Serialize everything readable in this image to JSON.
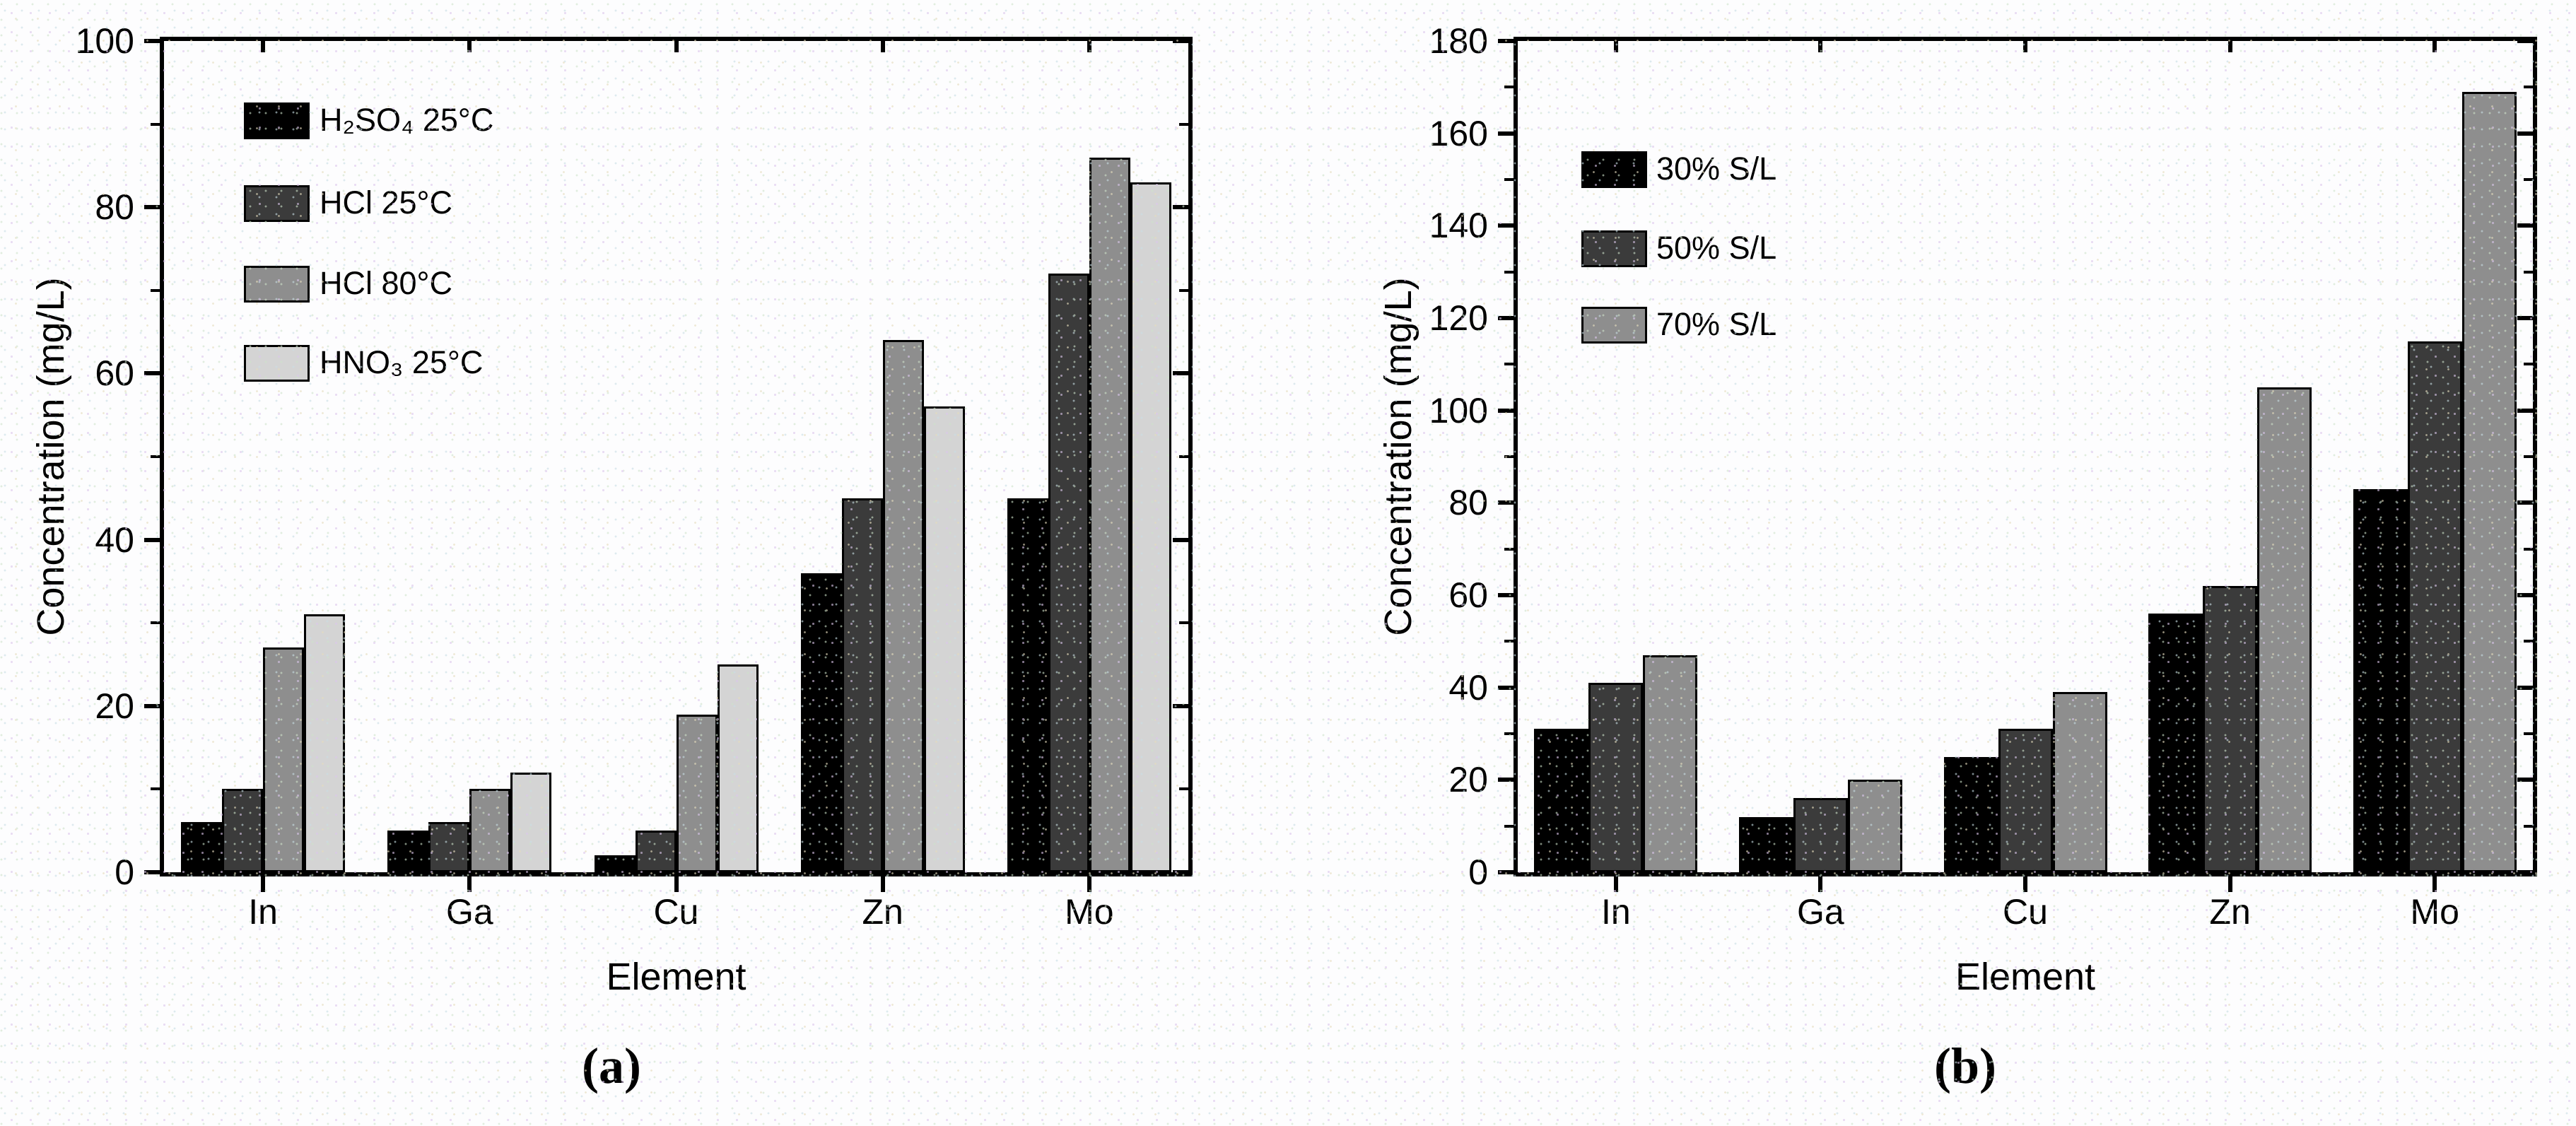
{
  "figure": {
    "description": "Two-panel grayscale bar figure comparing element concentrations",
    "text_color": "#000000",
    "axis_color": "#000000"
  },
  "chart_data": [
    {
      "type": "bar",
      "caption": "(a)",
      "title": "",
      "xlabel": "Element",
      "ylabel": "Concentration (mg/L)",
      "ylim": [
        0,
        100
      ],
      "ytick_interval": 20,
      "yminor_interval": 10,
      "grid": false,
      "legend_position": "upper-left-inside",
      "categories": [
        "In",
        "Ga",
        "Cu",
        "Zn",
        "Mo"
      ],
      "series": [
        {
          "name": "H₂SO₄ 25°C",
          "color": "#000000",
          "values": [
            6,
            5,
            2,
            36,
            45
          ]
        },
        {
          "name": "HCl 25°C",
          "color": "#3b3b3b",
          "values": [
            10,
            6,
            5,
            45,
            72
          ]
        },
        {
          "name": "HCl 80°C",
          "color": "#8e8e8e",
          "values": [
            27,
            10,
            19,
            64,
            86
          ]
        },
        {
          "name": "HNO₃ 25°C",
          "color": "#d4d4d4",
          "values": [
            31,
            12,
            25,
            56,
            83
          ]
        }
      ]
    },
    {
      "type": "bar",
      "caption": "(b)",
      "title": "",
      "xlabel": "Element",
      "ylabel": "Concentration (mg/L)",
      "ylim": [
        0,
        180
      ],
      "ytick_interval": 20,
      "yminor_interval": 10,
      "grid": false,
      "legend_position": "upper-left-inside",
      "categories": [
        "In",
        "Ga",
        "Cu",
        "Zn",
        "Mo"
      ],
      "series": [
        {
          "name": "30% S/L",
          "color": "#000000",
          "values": [
            31,
            12,
            25,
            56,
            83
          ]
        },
        {
          "name": "50% S/L",
          "color": "#3b3b3b",
          "values": [
            41,
            16,
            31,
            62,
            115
          ]
        },
        {
          "name": "70% S/L",
          "color": "#8e8e8e",
          "values": [
            47,
            20,
            39,
            105,
            169
          ]
        }
      ]
    }
  ]
}
